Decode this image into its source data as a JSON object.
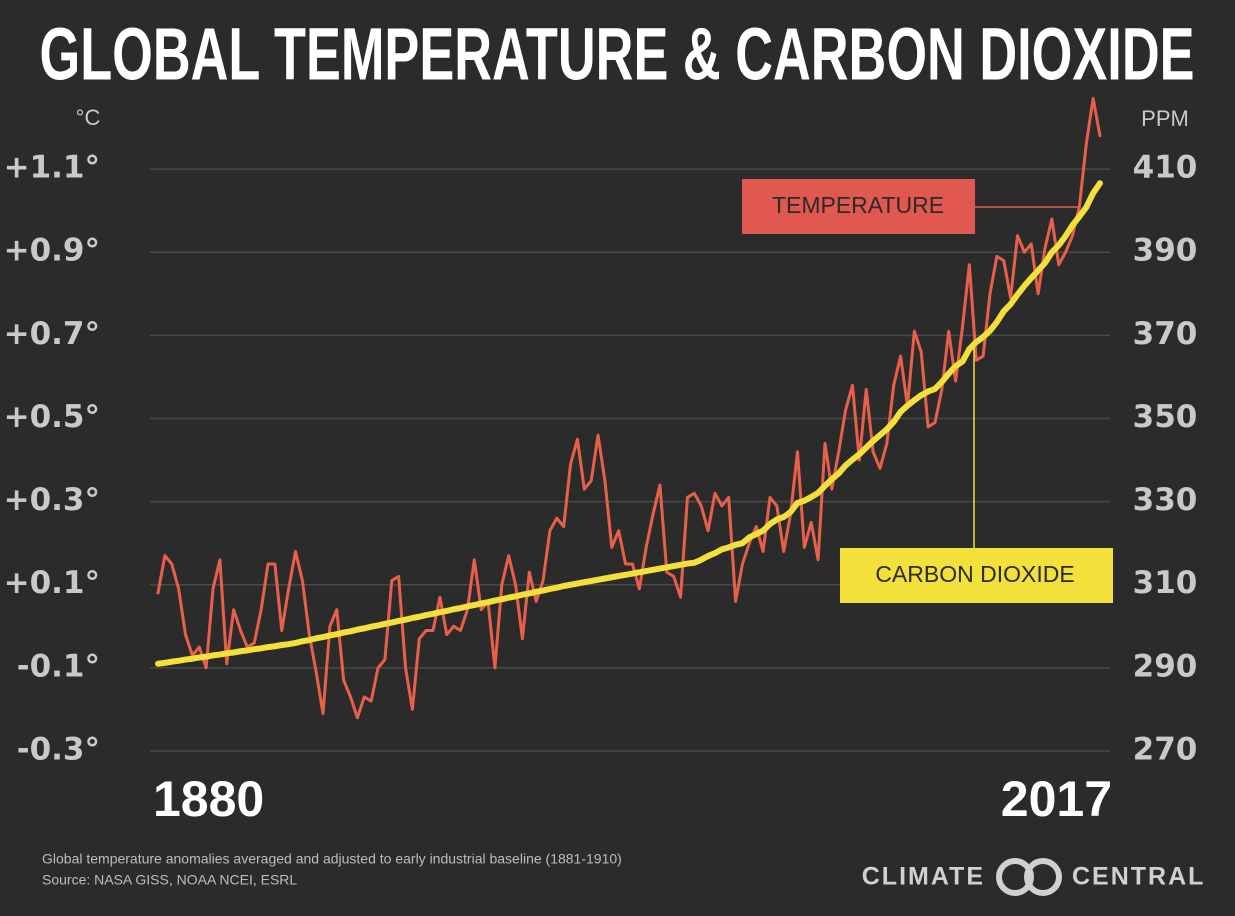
{
  "chart_data": {
    "type": "line",
    "title": "GLOBAL TEMPERATURE & CARBON DIOXIDE",
    "ylabel": "°C",
    "y2label": "PPM",
    "notes": [
      "Global temperature anomalies averaged and adjusted to early industrial baseline (1881-1910)",
      "Source: NASA GISS, NOAA NCEI, ESRL"
    ],
    "logo": [
      "CLIMATE",
      "CENTRAL"
    ],
    "xlim": [
      1880,
      2017
    ],
    "xticks": [
      1880,
      2017
    ],
    "ylim": [
      -0.3,
      1.25
    ],
    "yticks": [
      {
        "value": -0.3,
        "label": "-0.3°"
      },
      {
        "value": -0.1,
        "label": "-0.1°"
      },
      {
        "value": 0.1,
        "label": "+0.1°"
      },
      {
        "value": 0.3,
        "label": "+0.3°"
      },
      {
        "value": 0.5,
        "label": "+0.5°"
      },
      {
        "value": 0.7,
        "label": "+0.7°"
      },
      {
        "value": 0.9,
        "label": "+0.9°"
      },
      {
        "value": 1.1,
        "label": "+1.1°"
      }
    ],
    "y2lim": [
      270,
      425
    ],
    "y2ticks": [
      270,
      290,
      310,
      330,
      350,
      370,
      390,
      410
    ],
    "grid": true,
    "x": [
      1880,
      1881,
      1882,
      1883,
      1884,
      1885,
      1886,
      1887,
      1888,
      1889,
      1890,
      1891,
      1892,
      1893,
      1894,
      1895,
      1896,
      1897,
      1898,
      1899,
      1900,
      1901,
      1902,
      1903,
      1904,
      1905,
      1906,
      1907,
      1908,
      1909,
      1910,
      1911,
      1912,
      1913,
      1914,
      1915,
      1916,
      1917,
      1918,
      1919,
      1920,
      1921,
      1922,
      1923,
      1924,
      1925,
      1926,
      1927,
      1928,
      1929,
      1930,
      1931,
      1932,
      1933,
      1934,
      1935,
      1936,
      1937,
      1938,
      1939,
      1940,
      1941,
      1942,
      1943,
      1944,
      1945,
      1946,
      1947,
      1948,
      1949,
      1950,
      1951,
      1952,
      1953,
      1954,
      1955,
      1956,
      1957,
      1958,
      1959,
      1960,
      1961,
      1962,
      1963,
      1964,
      1965,
      1966,
      1967,
      1968,
      1969,
      1970,
      1971,
      1972,
      1973,
      1974,
      1975,
      1976,
      1977,
      1978,
      1979,
      1980,
      1981,
      1982,
      1983,
      1984,
      1985,
      1986,
      1987,
      1988,
      1989,
      1990,
      1991,
      1992,
      1993,
      1994,
      1995,
      1996,
      1997,
      1998,
      1999,
      2000,
      2001,
      2002,
      2003,
      2004,
      2005,
      2006,
      2007,
      2008,
      2009,
      2010,
      2011,
      2012,
      2013,
      2014,
      2015,
      2016,
      2017
    ],
    "series": [
      {
        "name": "TEMPERATURE",
        "color": "#e8604a",
        "axis": "y",
        "values": [
          0.08,
          0.17,
          0.15,
          0.09,
          -0.02,
          -0.07,
          -0.05,
          -0.1,
          0.09,
          0.16,
          -0.09,
          0.04,
          -0.01,
          -0.05,
          -0.04,
          0.04,
          0.15,
          0.15,
          -0.01,
          0.09,
          0.18,
          0.11,
          -0.02,
          -0.11,
          -0.21,
          0.0,
          0.04,
          -0.13,
          -0.17,
          -0.22,
          -0.17,
          -0.18,
          -0.1,
          -0.08,
          0.11,
          0.12,
          -0.1,
          -0.2,
          -0.03,
          -0.01,
          -0.01,
          0.07,
          -0.02,
          0.0,
          -0.01,
          0.04,
          0.16,
          0.04,
          0.06,
          -0.1,
          0.1,
          0.17,
          0.1,
          -0.03,
          0.13,
          0.06,
          0.11,
          0.23,
          0.26,
          0.24,
          0.39,
          0.45,
          0.33,
          0.35,
          0.46,
          0.35,
          0.19,
          0.23,
          0.15,
          0.15,
          0.09,
          0.19,
          0.27,
          0.34,
          0.13,
          0.12,
          0.07,
          0.31,
          0.32,
          0.29,
          0.23,
          0.32,
          0.29,
          0.31,
          0.06,
          0.15,
          0.2,
          0.24,
          0.18,
          0.31,
          0.29,
          0.18,
          0.27,
          0.42,
          0.19,
          0.25,
          0.16,
          0.44,
          0.33,
          0.42,
          0.52,
          0.58,
          0.4,
          0.57,
          0.42,
          0.38,
          0.44,
          0.58,
          0.65,
          0.53,
          0.71,
          0.66,
          0.48,
          0.49,
          0.57,
          0.71,
          0.59,
          0.72,
          0.87,
          0.64,
          0.65,
          0.8,
          0.89,
          0.88,
          0.79,
          0.94,
          0.9,
          0.92,
          0.8,
          0.91,
          0.98,
          0.87,
          0.9,
          0.94,
          1.01,
          1.16,
          1.27,
          1.18
        ]
      },
      {
        "name": "CARBON DIOXIDE",
        "color": "#f3e03b",
        "axis": "y2",
        "values": [
          291.0,
          291.2,
          291.5,
          291.7,
          292.0,
          292.2,
          292.5,
          292.7,
          293.0,
          293.2,
          293.5,
          293.7,
          294.0,
          294.2,
          294.5,
          294.7,
          295.0,
          295.2,
          295.5,
          295.7,
          296.0,
          296.4,
          296.7,
          297.1,
          297.4,
          297.8,
          298.1,
          298.5,
          298.8,
          299.2,
          299.5,
          299.9,
          300.2,
          300.6,
          300.9,
          301.3,
          301.6,
          302.0,
          302.3,
          302.7,
          303.0,
          303.4,
          303.7,
          304.1,
          304.4,
          304.8,
          305.1,
          305.5,
          305.8,
          306.2,
          306.5,
          306.9,
          307.2,
          307.6,
          307.9,
          308.3,
          308.6,
          309.0,
          309.3,
          309.7,
          310.0,
          310.3,
          310.6,
          310.9,
          311.2,
          311.5,
          311.8,
          312.1,
          312.4,
          312.7,
          313.0,
          313.3,
          313.6,
          313.9,
          314.2,
          314.5,
          314.8,
          315.1,
          315.3,
          316.0,
          316.9,
          317.6,
          318.5,
          319.0,
          319.6,
          320.0,
          321.4,
          322.2,
          323.0,
          324.6,
          325.7,
          326.3,
          327.5,
          329.7,
          330.2,
          331.1,
          332.1,
          333.8,
          335.4,
          336.8,
          338.7,
          340.1,
          341.4,
          343.0,
          344.6,
          346.0,
          347.4,
          349.2,
          351.6,
          353.1,
          354.4,
          355.6,
          356.5,
          357.1,
          358.8,
          360.8,
          362.6,
          363.7,
          366.7,
          368.4,
          369.6,
          371.1,
          373.2,
          375.8,
          377.5,
          379.8,
          381.9,
          383.8,
          385.6,
          387.4,
          390.0,
          391.7,
          393.9,
          396.5,
          398.6,
          400.8,
          404.2,
          406.6
        ]
      }
    ]
  }
}
